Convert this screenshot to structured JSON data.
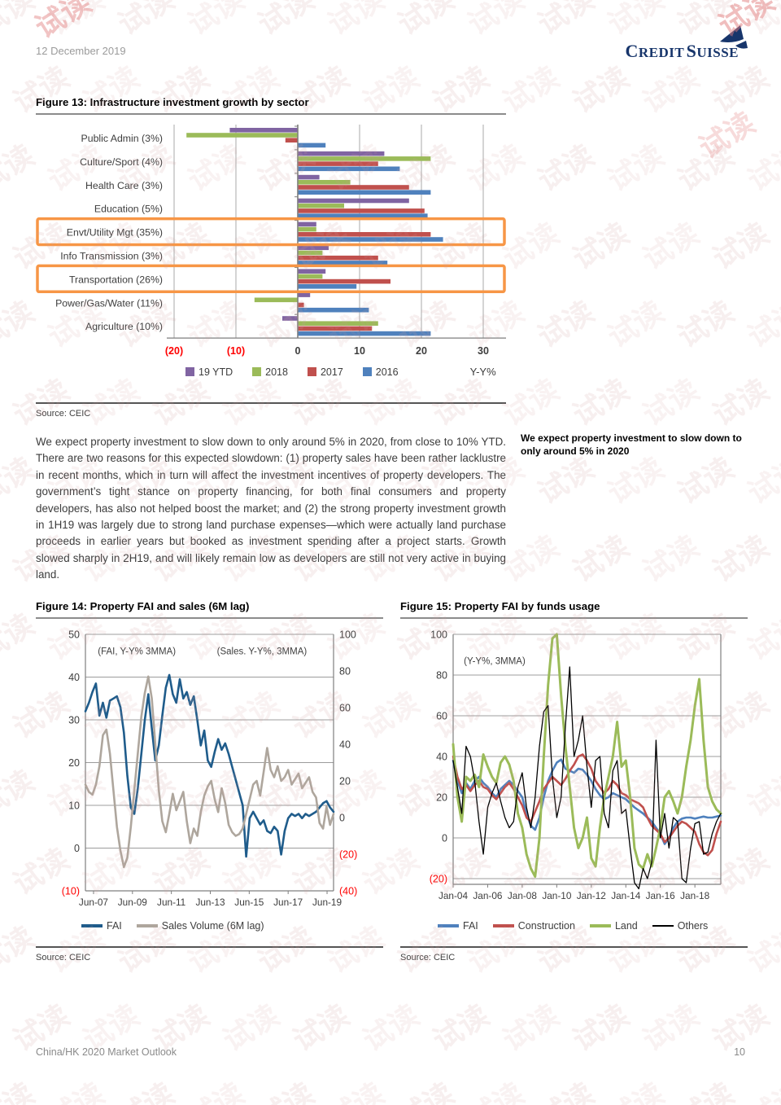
{
  "header": {
    "date": "12 December 2019",
    "brand": "CREDIT SUISSE"
  },
  "watermark": {
    "text": "试读"
  },
  "figure13": {
    "title": "Figure 13: Infrastructure investment growth by sector",
    "source": "Source: CEIC",
    "unit_label": "Y-Y%",
    "chart_data": {
      "type": "bar",
      "orientation": "horizontal",
      "categories": [
        "Public Admin (3%)",
        "Culture/Sport (4%)",
        "Health Care (3%)",
        "Education (5%)",
        "Envt/Utility Mgt (35%)",
        "Info Transmission (3%)",
        "Transportation (26%)",
        "Power/Gas/Water (11%)",
        "Agriculture (10%)"
      ],
      "series": [
        {
          "name": "19 YTD",
          "color": "#8064A2",
          "values": [
            -11,
            14,
            3.5,
            18,
            3,
            5,
            4.5,
            2,
            -2.5
          ]
        },
        {
          "name": "2018",
          "color": "#9BBB59",
          "values": [
            -18,
            21.5,
            8.5,
            7.5,
            3,
            4,
            4,
            -7,
            13
          ]
        },
        {
          "name": "2017",
          "color": "#C0504D",
          "values": [
            -2,
            13,
            18,
            20.5,
            21.5,
            13,
            15,
            1,
            12
          ]
        },
        {
          "name": "2016",
          "color": "#4F81BD",
          "values": [
            4.5,
            16.5,
            21.5,
            21,
            23.5,
            14.5,
            9.5,
            11.5,
            21.5
          ]
        }
      ],
      "x_ticks": [
        -20,
        -10,
        0,
        10,
        20,
        30
      ],
      "xlim": [
        -21.2,
        33.7
      ],
      "highlighted_categories": [
        "Envt/Utility Mgt (35%)",
        "Transportation (26%)"
      ],
      "highlight_color": "#F79646",
      "negative_tick_color": "#FF0000",
      "axis_label": "Y-Y%"
    }
  },
  "paragraph": "We expect property investment to slow down to only around 5% in 2020, from close to 10% YTD. There are two reasons for this expected slowdown: (1) property sales have been rather lacklustre in recent months, which in turn will affect the investment incentives of property developers. The government’s tight stance on property financing, for both final consumers and property developers, has also not helped boost the market; and (2) the strong property investment growth in 1H19 was largely due to strong land purchase expenses—which were actually land purchase proceeds in earlier years but booked as investment spending after a project starts. Growth slowed sharply in 2H19, and will likely remain low as developers are still not very active in buying land.",
  "sidenote": "We expect property investment to slow down to only around 5% in 2020",
  "figure14": {
    "title": "Figure 14: Property FAI and sales (6M lag)",
    "source": "Source: CEIC",
    "chart_data": {
      "type": "line",
      "annotations": [
        {
          "text": "(FAI, Y-Y% 3MMA)",
          "fx": 0.05,
          "fy": 0.04
        },
        {
          "text": "(Sales. Y-Y%, 3MMA)",
          "fx": 0.53,
          "fy": 0.04
        }
      ],
      "left_axis": {
        "ticks": [
          50,
          40,
          30,
          20,
          10,
          0,
          -10
        ],
        "max": 50,
        "min": -10
      },
      "right_axis": {
        "ticks": [
          100,
          80,
          60,
          40,
          20,
          0,
          -20,
          -40
        ],
        "max": 100,
        "min": -40
      },
      "x_ticks": [
        "Jun-07",
        "Jun-09",
        "Jun-11",
        "Jun-13",
        "Jun-15",
        "Jun-17",
        "Jun-19"
      ],
      "x_tick_months": [
        5,
        29,
        53,
        77,
        101,
        125,
        149
      ],
      "x_total_months": 153,
      "x_range": [
        "Jan-07",
        "Oct-19"
      ],
      "series": [
        {
          "name": "FAI",
          "axis": "left",
          "color": "#1F5C8B",
          "width": 2.6,
          "values": [
            32,
            34,
            36.5,
            38.5,
            31,
            34,
            30.5,
            34.5,
            35,
            35.5,
            33,
            27,
            17,
            9.5,
            8,
            14,
            22,
            30,
            36,
            28,
            20.5,
            24,
            31,
            37.5,
            40.5,
            36,
            34,
            39.5,
            35,
            36.5,
            33.5,
            35.5,
            30,
            24,
            27.5,
            20.5,
            19,
            22.5,
            25.5,
            23,
            24.5,
            22,
            19,
            16,
            13,
            10,
            -2,
            7,
            8.5,
            7,
            5.5,
            6.5,
            4,
            3.5,
            5,
            4,
            -1.5,
            4,
            7,
            8,
            7.5,
            8,
            7,
            8,
            7.5,
            8,
            8.5,
            9.5,
            10.5,
            11,
            9.5,
            8.5
          ]
        },
        {
          "name": "Sales Volume (6M lag)",
          "axis": "right",
          "color": "#AEA69D",
          "width": 2.6,
          "values": [
            18,
            14,
            12.5,
            18,
            28,
            45,
            48,
            35,
            15,
            -5,
            -18,
            -27,
            -22,
            -5,
            15,
            35,
            55,
            68,
            77,
            65,
            40,
            15,
            -2,
            -8,
            2,
            13,
            4,
            9,
            14,
            -2,
            -14,
            -6,
            -10,
            3,
            12,
            17,
            20,
            10,
            3,
            16,
            8,
            -4,
            -8,
            -10,
            -9,
            -6,
            2,
            10,
            18,
            20,
            12,
            25,
            38,
            26,
            22,
            28,
            20,
            22,
            26,
            18,
            21,
            24,
            16,
            19,
            22,
            14,
            11,
            -3,
            -6,
            6,
            -4,
            2
          ]
        }
      ]
    }
  },
  "figure15": {
    "title": "Figure 15: Property FAI by funds usage",
    "source": "Source: CEIC",
    "chart_data": {
      "type": "line",
      "annotations": [
        {
          "text": "(Y-Y%, 3MMA)",
          "fx": 0.04,
          "fy": 0.08
        }
      ],
      "left_axis": {
        "ticks": [
          100,
          80,
          60,
          40,
          20,
          0,
          -20
        ],
        "max": 100,
        "min": -20
      },
      "x_ticks": [
        "Jan-04",
        "Jan-06",
        "Jan-08",
        "Jan-10",
        "Jan-12",
        "Jan-14",
        "Jan-16",
        "Jan-18"
      ],
      "x_tick_months": [
        0,
        24,
        48,
        72,
        96,
        120,
        144,
        168
      ],
      "x_total_months": 186,
      "x_range": [
        "Jan-04",
        "Jul-19"
      ],
      "series": [
        {
          "name": "FAI",
          "axis": "left",
          "color": "#4F81BD",
          "width": 2.6,
          "values": [
            38,
            28,
            22,
            27,
            24,
            28,
            30,
            27,
            25,
            22,
            20,
            24,
            26,
            28,
            26,
            23,
            20,
            12,
            6,
            4,
            10,
            20,
            28,
            33,
            37,
            38.5,
            34,
            33,
            32,
            34,
            33.5,
            31,
            28,
            24,
            21,
            19,
            20,
            22,
            21,
            20,
            19,
            17,
            15,
            13.5,
            12,
            10,
            8,
            5,
            2,
            -3,
            0,
            5,
            8,
            9.5,
            10,
            10,
            9.5,
            10,
            10.5,
            10,
            10,
            10.5,
            11
          ]
        },
        {
          "name": "Construction",
          "axis": "left",
          "color": "#C0504D",
          "width": 2.6,
          "values": [
            40,
            30,
            24,
            26,
            23,
            26,
            28,
            25,
            24,
            21,
            19,
            22,
            25,
            27,
            24,
            20,
            16,
            10,
            8,
            13,
            18,
            24,
            27,
            30,
            28,
            26,
            29,
            33,
            36,
            40,
            41,
            38,
            34,
            28,
            25,
            22,
            24,
            28,
            26,
            22,
            21,
            19,
            18,
            17,
            15,
            10,
            6,
            4,
            2,
            -2,
            0,
            3,
            6,
            8,
            7,
            5,
            3,
            -3,
            -7,
            -8.5,
            -6,
            2,
            8
          ]
        },
        {
          "name": "Land",
          "axis": "left",
          "color": "#9BBB59",
          "width": 3,
          "values": [
            46,
            20,
            8,
            30,
            28,
            31,
            25,
            41,
            35,
            30,
            27,
            37,
            40,
            36,
            28,
            12,
            5,
            -8,
            -15,
            -19,
            0,
            40,
            75,
            98,
            100,
            70,
            45,
            25,
            5,
            -5,
            0,
            10,
            -10,
            -14,
            5,
            20,
            30,
            40,
            57,
            35,
            38,
            20,
            -5,
            -13,
            -15,
            -8,
            -14,
            -5,
            5,
            20,
            23,
            18,
            12,
            20,
            35,
            48,
            65,
            78,
            48,
            25,
            18,
            14,
            12
          ]
        },
        {
          "name": "Others",
          "axis": "left",
          "color": "#000000",
          "width": 1.3,
          "values": [
            38,
            25,
            12,
            45,
            40,
            28,
            8,
            -8,
            15,
            22,
            27,
            18,
            10,
            5,
            8,
            25,
            32,
            15,
            5,
            20,
            45,
            62,
            65,
            30,
            10,
            20,
            55,
            84,
            40,
            48,
            60,
            35,
            15,
            38,
            40,
            12,
            5,
            33,
            38,
            12,
            14,
            -5,
            -22,
            -25,
            -15,
            -20,
            -12,
            48,
            0,
            12,
            -5,
            10,
            8,
            -20,
            -22,
            -5,
            7,
            8,
            -8,
            -7,
            2,
            8,
            12
          ]
        }
      ]
    }
  },
  "footer": {
    "left": "China/HK 2020 Market Outlook",
    "page": "10"
  }
}
